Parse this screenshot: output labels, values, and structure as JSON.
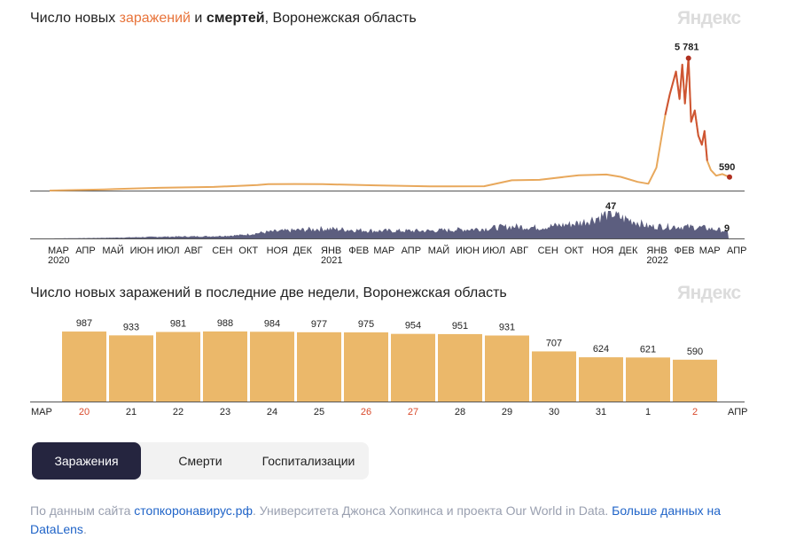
{
  "brand": "Яндекс",
  "chart1": {
    "title_prefix": "Число новых ",
    "title_infections": "заражений",
    "title_and": " и ",
    "title_deaths": "смертей",
    "title_suffix": ", Воронежская область"
  },
  "chart2": {
    "title": "Число новых заражений в последние две недели, Воронежская область"
  },
  "chart_data": [
    {
      "type": "line",
      "title": "Число новых заражений и смертей, Воронежская область",
      "x_range": [
        "2020-03",
        "2022-04"
      ],
      "month_labels": [
        "МАР",
        "АПР",
        "МАЙ",
        "ИЮН",
        "ИЮЛ",
        "АВГ",
        "СЕН",
        "ОКТ",
        "НОЯ",
        "ДЕК",
        "ЯНВ",
        "ФЕВ",
        "МАР",
        "АПР",
        "МАЙ",
        "ИЮН",
        "ИЮЛ",
        "АВГ",
        "СЕН",
        "ОКТ",
        "НОЯ",
        "ДЕК",
        "ЯНВ",
        "ФЕВ",
        "МАР",
        "АПР"
      ],
      "year_labels": [
        "2020",
        "2021",
        "2022"
      ],
      "series": [
        {
          "key": "infections",
          "color": "#e8a85c",
          "peak_color": "#c9462c",
          "ylim": [
            0,
            6000
          ],
          "points": [
            [
              "2020-03-01",
              0
            ],
            [
              "2020-05-01",
              50
            ],
            [
              "2020-07-01",
              120
            ],
            [
              "2020-09-01",
              160
            ],
            [
              "2020-10-01",
              210
            ],
            [
              "2020-10-20",
              240
            ],
            [
              "2020-11-01",
              280
            ],
            [
              "2020-12-01",
              285
            ],
            [
              "2021-01-01",
              280
            ],
            [
              "2021-03-01",
              230
            ],
            [
              "2021-05-01",
              180
            ],
            [
              "2021-07-01",
              190
            ],
            [
              "2021-08-01",
              450
            ],
            [
              "2021-09-01",
              470
            ],
            [
              "2021-10-15",
              670
            ],
            [
              "2021-11-15",
              700
            ],
            [
              "2021-12-01",
              600
            ],
            [
              "2021-12-20",
              380
            ],
            [
              "2022-01-01",
              300
            ],
            [
              "2022-01-10",
              1000
            ],
            [
              "2022-01-20",
              3300
            ],
            [
              "2022-01-25",
              4200
            ],
            [
              "2022-02-01",
              5200
            ],
            [
              "2022-02-05",
              4000
            ],
            [
              "2022-02-08",
              5500
            ],
            [
              "2022-02-11",
              3800
            ],
            [
              "2022-02-15",
              5781
            ],
            [
              "2022-02-18",
              3000
            ],
            [
              "2022-02-22",
              3500
            ],
            [
              "2022-02-26",
              2400
            ],
            [
              "2022-03-02",
              2000
            ],
            [
              "2022-03-05",
              2600
            ],
            [
              "2022-03-08",
              1300
            ],
            [
              "2022-03-12",
              900
            ],
            [
              "2022-03-18",
              650
            ],
            [
              "2022-03-25",
              720
            ],
            [
              "2022-04-02",
              590
            ]
          ],
          "peak": {
            "date": "2022-02-15",
            "value": 5781,
            "label": "5 781"
          },
          "last": {
            "date": "2022-04-02",
            "value": 590,
            "label": "590"
          }
        },
        {
          "key": "deaths",
          "color": "#3f4269",
          "ylim": [
            0,
            50
          ],
          "points": [
            [
              "2020-03-01",
              0
            ],
            [
              "2020-05-01",
              1
            ],
            [
              "2020-06-01",
              2
            ],
            [
              "2020-07-01",
              3
            ],
            [
              "2020-09-01",
              4
            ],
            [
              "2020-10-01",
              6
            ],
            [
              "2020-11-01",
              12
            ],
            [
              "2020-12-01",
              15
            ],
            [
              "2021-01-01",
              18
            ],
            [
              "2021-03-01",
              14
            ],
            [
              "2021-05-01",
              14
            ],
            [
              "2021-07-01",
              18
            ],
            [
              "2021-08-01",
              22
            ],
            [
              "2021-09-01",
              20
            ],
            [
              "2021-10-15",
              28
            ],
            [
              "2021-11-01",
              36
            ],
            [
              "2021-11-20",
              47
            ],
            [
              "2021-12-01",
              38
            ],
            [
              "2021-12-20",
              30
            ],
            [
              "2022-01-01",
              22
            ],
            [
              "2022-02-01",
              22
            ],
            [
              "2022-03-01",
              20
            ],
            [
              "2022-03-25",
              15
            ],
            [
              "2022-04-02",
              9
            ]
          ],
          "peak": {
            "date": "2021-11-20",
            "value": 47,
            "label": "47"
          },
          "last": {
            "date": "2022-04-02",
            "value": 9,
            "label": "9"
          }
        }
      ]
    },
    {
      "type": "bar",
      "title": "Число новых заражений в последние две недели, Воронежская область",
      "color": "#ebb86a",
      "categories": [
        "20",
        "21",
        "22",
        "23",
        "24",
        "25",
        "26",
        "27",
        "28",
        "29",
        "30",
        "31",
        "1",
        "2"
      ],
      "values": [
        987,
        933,
        981,
        988,
        984,
        977,
        975,
        954,
        951,
        931,
        707,
        624,
        621,
        590
      ],
      "value_labels": [
        "987",
        "933",
        "981",
        "988",
        "984",
        "977",
        "975",
        "954",
        "951",
        "931",
        "707",
        "624",
        "621",
        "590"
      ],
      "weekend_color": "#d94a2b",
      "weekends": [
        "20",
        "26",
        "27",
        "2"
      ],
      "start_label": "МАР",
      "end_label": "АПР",
      "ylim": [
        0,
        1000
      ]
    }
  ],
  "tabs": [
    {
      "label": "Заражения",
      "active": true
    },
    {
      "label": "Смерти",
      "active": false
    },
    {
      "label": "Госпитализации",
      "active": false
    }
  ],
  "footer": {
    "prefix": "По данным сайта ",
    "link1": "стопкоронавирус.рф",
    "middle": ". Университета Джонса Хопкинса и проекта Our World in Data. ",
    "link2": "Больше данных на DataLens",
    "suffix": "."
  }
}
